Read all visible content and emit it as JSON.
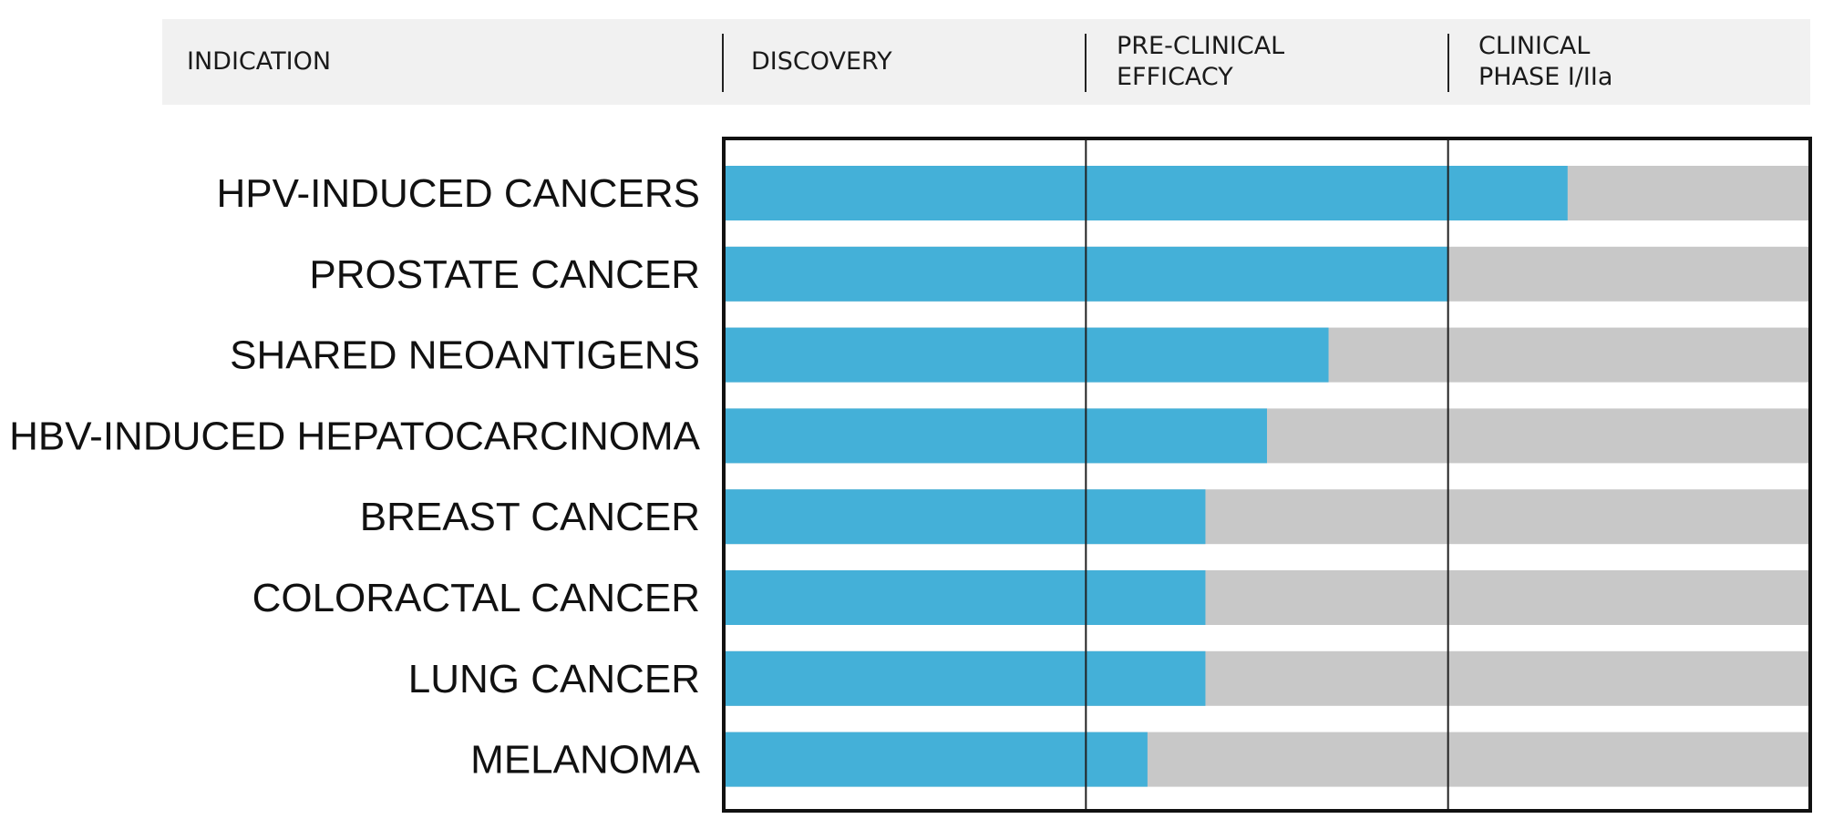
{
  "header": {
    "columns": [
      "INDICATION",
      "DISCOVERY",
      "PRE-CLINICAL\nEFFICACY",
      "CLINICAL\nPHASE I/IIa"
    ]
  },
  "colors": {
    "progress": "#44b0d8",
    "remaining": "#c8c8c8",
    "header_bg": "#f1f1f1",
    "frame": "#111111"
  },
  "chart_data": {
    "type": "bar",
    "orientation": "horizontal",
    "stages": [
      "DISCOVERY",
      "PRE-CLINICAL EFFICACY",
      "CLINICAL PHASE I/IIa"
    ],
    "categories": [
      "HPV-INDUCED CANCERS",
      "PROSTATE CANCER",
      "SHARED NEOANTIGENS",
      "HBV-INDUCED HEPATOCARCINOMA",
      "BREAST CANCER",
      "COLORACTAL CANCER",
      "LUNG CANCER",
      "MELANOMA"
    ],
    "values": [
      2.33,
      2.0,
      1.67,
      1.5,
      1.33,
      1.33,
      1.33,
      1.17
    ],
    "xlim": [
      0,
      3
    ],
    "unit": "stages completed",
    "grid": true
  }
}
